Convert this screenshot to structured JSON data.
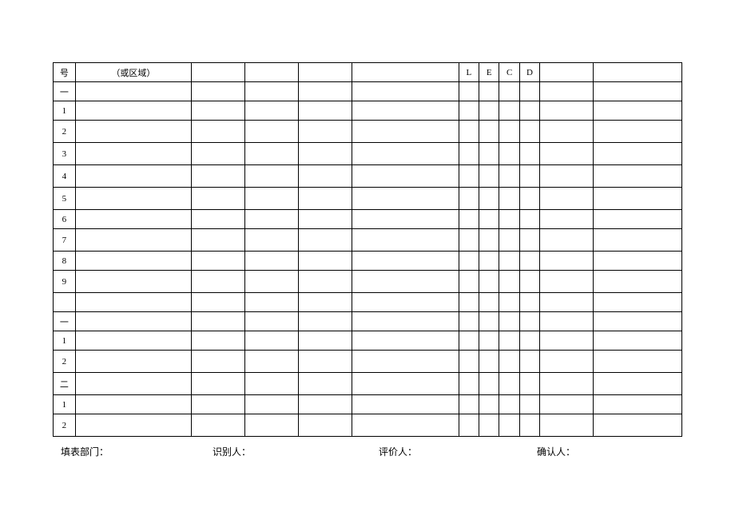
{
  "header": {
    "col1": "号",
    "col2": "（或区域）",
    "col3": "",
    "col4": "",
    "col5": "",
    "col6": "",
    "col7": "L",
    "col8": "E",
    "col9": "C",
    "col10": "D",
    "col11": "",
    "col12": ""
  },
  "rows": [
    {
      "n": "一",
      "tall": false
    },
    {
      "n": "1",
      "tall": false
    },
    {
      "n": "2",
      "tall": true
    },
    {
      "n": "3",
      "tall": true
    },
    {
      "n": "4",
      "tall": true
    },
    {
      "n": "5",
      "tall": true
    },
    {
      "n": "6",
      "tall": false
    },
    {
      "n": "7",
      "tall": true
    },
    {
      "n": "8",
      "tall": false
    },
    {
      "n": "9",
      "tall": true
    },
    {
      "n": "",
      "tall": false
    },
    {
      "n": "一",
      "tall": false
    },
    {
      "n": "1",
      "tall": false
    },
    {
      "n": "2",
      "tall": true
    },
    {
      "n": "二",
      "tall": true
    },
    {
      "n": "1",
      "tall": false
    },
    {
      "n": "2",
      "tall": true
    }
  ],
  "footer": {
    "dept": "填表部门：",
    "identifier": "识别人：",
    "evaluator": "评价人：",
    "confirmer": "确认人："
  },
  "colwidths": [
    "24",
    "126",
    "58",
    "58",
    "58",
    "116",
    "22",
    "22",
    "22",
    "22",
    "58",
    "96"
  ]
}
